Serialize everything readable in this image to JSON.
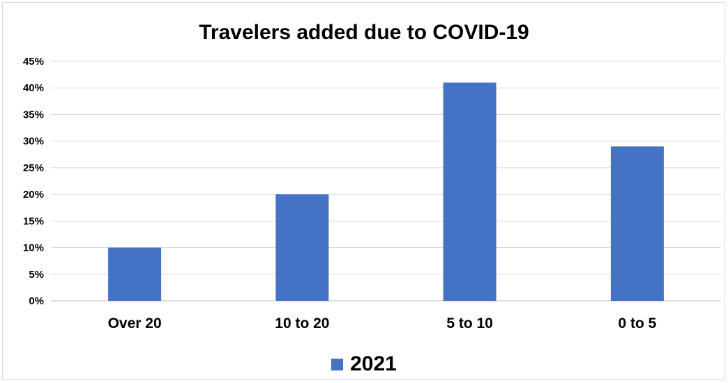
{
  "chart_data": {
    "type": "bar",
    "title": "Travelers added due to COVID-19",
    "categories": [
      "Over 20",
      "10 to 20",
      "5 to 10",
      "0 to 5"
    ],
    "series": [
      {
        "name": "2021",
        "values": [
          10,
          20,
          41,
          29
        ],
        "color": "#4472C4"
      }
    ],
    "ylim": [
      0,
      45
    ],
    "ytick_step": 5,
    "ytick_suffix": "%",
    "grid": true,
    "legend_position": "bottom"
  }
}
